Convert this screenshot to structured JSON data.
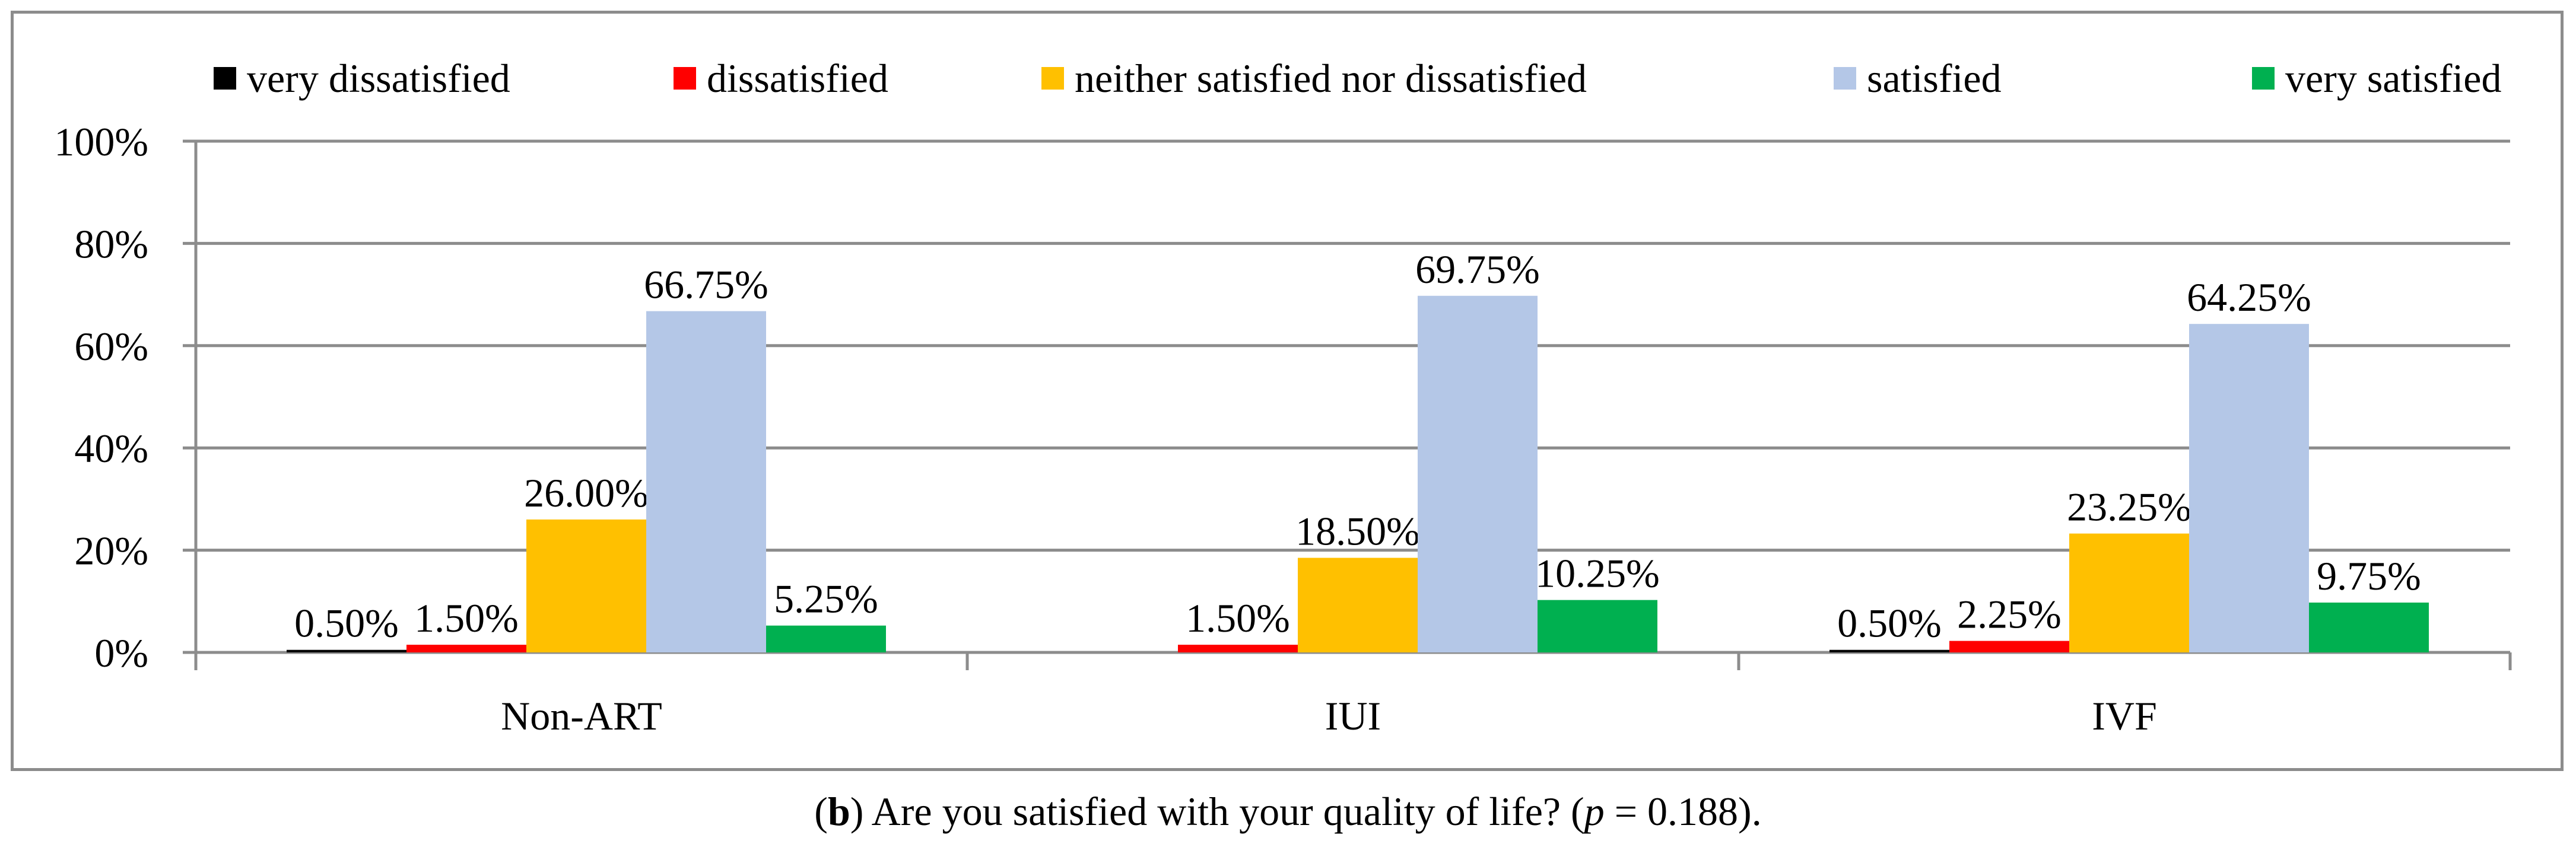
{
  "chart_data": {
    "type": "bar",
    "categories": [
      "Non-ART",
      "IUI",
      "IVF"
    ],
    "series": [
      {
        "name": "very dissatisfied",
        "color": "#000000",
        "values": [
          0.5,
          null,
          0.5
        ],
        "labels": [
          "0.50%",
          null,
          "0.50%"
        ]
      },
      {
        "name": "dissatisfied",
        "color": "#ff0000",
        "values": [
          1.5,
          1.5,
          2.25
        ],
        "labels": [
          "1.50%",
          "1.50%",
          "2.25%"
        ]
      },
      {
        "name": "neither satisfied nor dissatisfied",
        "color": "#ffc000",
        "values": [
          26.0,
          18.5,
          23.25
        ],
        "labels": [
          "26.00%",
          "18.50%",
          "23.25%"
        ]
      },
      {
        "name": "satisfied",
        "color": "#b4c7e7",
        "values": [
          66.75,
          69.75,
          64.25
        ],
        "labels": [
          "66.75%",
          "69.75%",
          "64.25%"
        ]
      },
      {
        "name": "very satisfied",
        "color": "#00b050",
        "values": [
          5.25,
          10.25,
          9.75
        ],
        "labels": [
          "5.25%",
          "10.25%",
          "9.75%"
        ]
      }
    ],
    "ylim": [
      0,
      100
    ],
    "yticks": [
      0,
      20,
      40,
      60,
      80,
      100
    ],
    "ytick_labels": [
      "0%",
      "20%",
      "40%",
      "60%",
      "80%",
      "100%"
    ],
    "grid": true,
    "legend_position": "top"
  },
  "caption": {
    "open_paren": "(",
    "letter": "b",
    "text_before": ") Are you satisfied with your quality of life? (",
    "p_symbol": "p",
    "text_after": " = 0.188)."
  }
}
